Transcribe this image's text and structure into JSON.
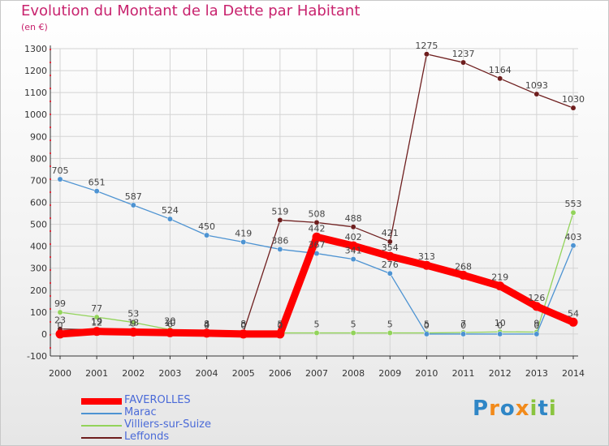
{
  "title": "Evolution du Montant de la Dette par Habitant",
  "subtitle": "(en €)",
  "logo": "Proxiti",
  "colors": {
    "FAVEROLLES": "#ff0000",
    "Marac": "#4d93d2",
    "Villiers-sur-Suize": "#92d35a",
    "Leffonds": "#6e1e1e",
    "title": "#c8236e",
    "legend_text": "#4a6ad8"
  },
  "chart_data": {
    "type": "line",
    "title": "Evolution du Montant de la Dette par Habitant",
    "ylabel": "(en €)",
    "xlabel": "",
    "x": [
      2000,
      2001,
      2002,
      2003,
      2004,
      2005,
      2006,
      2007,
      2008,
      2009,
      2010,
      2011,
      2012,
      2013,
      2014
    ],
    "ylim": [
      -100,
      1300
    ],
    "yticks": [
      -100,
      0,
      100,
      200,
      300,
      400,
      500,
      600,
      700,
      800,
      900,
      1000,
      1100,
      1200,
      1300
    ],
    "grid": true,
    "legend": "bottom-left",
    "series": [
      {
        "name": "FAVEROLLES",
        "values": [
          0,
          12,
          9,
          6,
          4,
          0,
          0,
          442,
          402,
          354,
          313,
          268,
          219,
          126,
          54
        ],
        "labels": [
          "0",
          "12",
          "9",
          "6",
          "4",
          "0",
          "0",
          "442",
          "402",
          "354",
          "313",
          "268",
          "219",
          "126",
          "54"
        ]
      },
      {
        "name": "Marac",
        "values": [
          705,
          651,
          587,
          524,
          450,
          419,
          386,
          367,
          341,
          276,
          0,
          0,
          0,
          0,
          403
        ],
        "labels": [
          "705",
          "651",
          "587",
          "524",
          "450",
          "419",
          "386",
          "367",
          "341",
          "276",
          "0",
          "0",
          "0",
          "0",
          "403"
        ]
      },
      {
        "name": "Villiers-sur-Suize",
        "values": [
          99,
          77,
          53,
          20,
          0,
          0,
          5,
          5,
          5,
          5,
          5,
          7,
          10,
          9,
          553
        ],
        "labels": [
          "99",
          "77",
          "53",
          "20",
          "0",
          "0",
          "5",
          "5",
          "5",
          "5",
          "5",
          "7",
          "10",
          "9",
          "553"
        ]
      },
      {
        "name": "Leffonds",
        "values": [
          23,
          19,
          13,
          10,
          8,
          8,
          519,
          508,
          488,
          421,
          1275,
          1237,
          1164,
          1093,
          1030
        ],
        "labels": [
          "23",
          "19",
          "13",
          "10",
          "8",
          "8",
          "519",
          "508",
          "488",
          "421",
          "1275",
          "1237",
          "1164",
          "1093",
          "1030"
        ]
      }
    ]
  }
}
